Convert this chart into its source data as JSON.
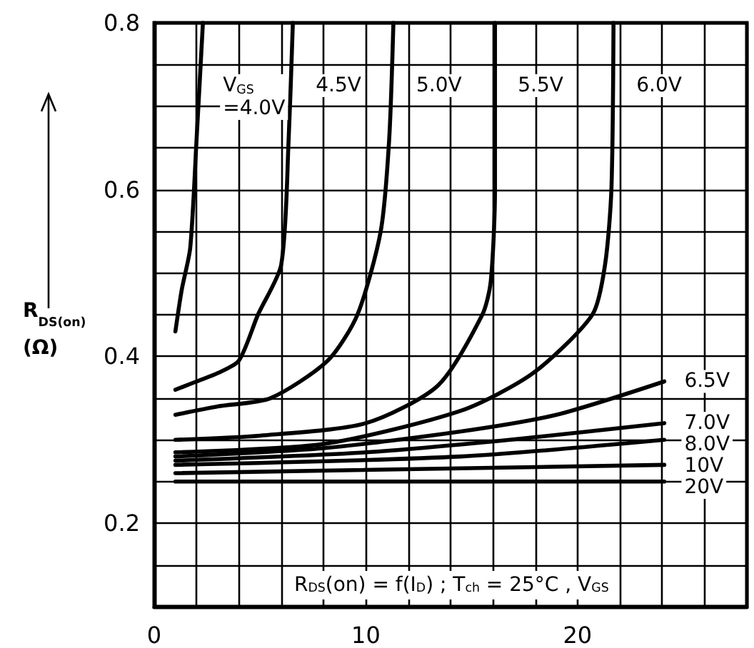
{
  "chart_data": {
    "type": "line",
    "ylabel": "R$_{DS(on)}$ (Ω)",
    "annotations": [
      "R$_{DS}$(on) = f(I$_{D}$) ; T$_{ch}$ = 25°C , V$_{GS}$"
    ],
    "xlim": [
      0,
      28
    ],
    "xticks": [
      0,
      {
        "value": 2,
        "label": null
      },
      {
        "value": 4,
        "label": null
      },
      {
        "value": 6,
        "label": null
      },
      {
        "value": 8,
        "label": null
      },
      10,
      {
        "value": 12,
        "label": null
      },
      {
        "value": 14,
        "label": null
      },
      {
        "value": 16,
        "label": null
      },
      {
        "value": 18,
        "label": null
      },
      20,
      {
        "value": 22,
        "label": null
      },
      {
        "value": 24,
        "label": null
      },
      {
        "value": 26,
        "label": null
      },
      {
        "value": 28,
        "label": null
      }
    ],
    "ylim": [
      0.1,
      0.8
    ],
    "yticks": [
      {
        "value": 0.1,
        "label": null
      },
      {
        "value": 0.15,
        "label": null
      },
      0.2,
      {
        "value": 0.25,
        "label": null
      },
      {
        "value": 0.3,
        "label": null
      },
      {
        "value": 0.35,
        "label": null
      },
      0.4,
      {
        "value": 0.45,
        "label": null
      },
      {
        "value": 0.5,
        "label": null
      },
      {
        "value": 0.55,
        "label": null
      },
      0.6,
      {
        "value": 0.65,
        "label": null
      },
      {
        "value": 0.7,
        "label": null
      },
      {
        "value": 0.75,
        "label": null
      },
      0.8
    ],
    "grid": true,
    "legend": false,
    "marker": "none",
    "line_style": "solid",
    "series": [
      {
        "name": "V$_{GS}$ =4.0V",
        "color": "#000000",
        "x": [
          1,
          1.3,
          1.7,
          2.0,
          2.3
        ],
        "values": [
          0.43,
          0.48,
          0.53,
          0.66,
          0.8
        ]
      },
      {
        "name": "4.5V",
        "color": "#000000",
        "x": [
          1,
          2,
          3,
          4,
          4.9,
          6,
          6.35,
          6.55
        ],
        "values": [
          0.36,
          0.37,
          0.38,
          0.395,
          0.45,
          0.51,
          0.66,
          0.8
        ]
      },
      {
        "name": "5.0V",
        "color": "#000000",
        "x": [
          1,
          3,
          5.5,
          8.2,
          9.6,
          10.7,
          11.1,
          11.3
        ],
        "values": [
          0.33,
          0.34,
          0.35,
          0.395,
          0.45,
          0.55,
          0.66,
          0.8
        ]
      },
      {
        "name": "5.5V",
        "color": "#000000",
        "x": [
          1,
          5,
          10,
          13.4,
          15.5,
          15.9,
          16.1,
          16.1
        ],
        "values": [
          0.3,
          0.305,
          0.32,
          0.365,
          0.45,
          0.49,
          0.6,
          0.8
        ]
      },
      {
        "name": "6.0V",
        "color": "#000000",
        "x": [
          1,
          8,
          14.5,
          17.9,
          20.7,
          21.3,
          21.6,
          21.7
        ],
        "values": [
          0.285,
          0.295,
          0.335,
          0.38,
          0.45,
          0.51,
          0.6,
          0.8
        ]
      },
      {
        "name": "6.5V",
        "color": "#000000",
        "x": [
          1,
          8,
          14.5,
          19,
          24.1
        ],
        "values": [
          0.28,
          0.29,
          0.31,
          0.33,
          0.37
        ]
      },
      {
        "name": "7.0V",
        "color": "#000000",
        "x": [
          1,
          10,
          16.8,
          24.1
        ],
        "values": [
          0.275,
          0.285,
          0.3,
          0.32
        ]
      },
      {
        "name": "8.0V",
        "color": "#000000",
        "x": [
          1,
          14.5,
          24.1
        ],
        "values": [
          0.27,
          0.28,
          0.3
        ]
      },
      {
        "name": "10V",
        "color": "#000000",
        "x": [
          1,
          24.1
        ],
        "values": [
          0.26,
          0.27
        ]
      },
      {
        "name": "20V",
        "color": "#000000",
        "x": [
          1,
          24.1
        ],
        "values": [
          0.25,
          0.25
        ]
      }
    ]
  }
}
